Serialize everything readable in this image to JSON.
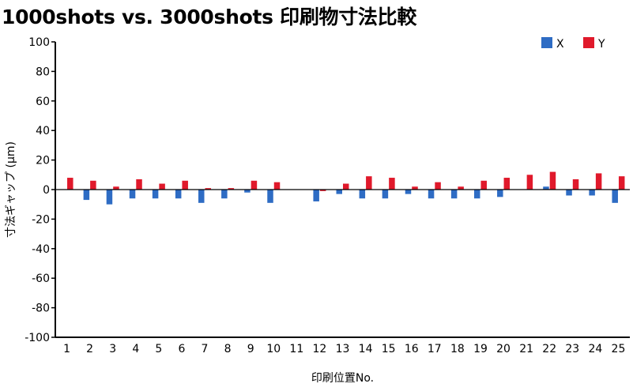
{
  "chart_data": {
    "type": "bar",
    "title": "1000shots vs. 3000shots 印刷物寸法比較",
    "xlabel": "印刷位置No.",
    "ylabel": "寸法ギャップ (μm)",
    "ylim": [
      -100,
      100
    ],
    "yticks": [
      100,
      80,
      60,
      40,
      20,
      0,
      -20,
      -40,
      -60,
      -80,
      -100
    ],
    "legend_position": "top-right",
    "categories": [
      "1",
      "2",
      "3",
      "4",
      "5",
      "6",
      "7",
      "8",
      "9",
      "10",
      "11",
      "12",
      "13",
      "14",
      "15",
      "16",
      "17",
      "18",
      "19",
      "20",
      "21",
      "22",
      "23",
      "24",
      "25"
    ],
    "series": [
      {
        "name": "X",
        "color": "#2e6cc4",
        "values": [
          0,
          -7,
          -10,
          -6,
          -6,
          -6,
          -9,
          -6,
          -2,
          -9,
          0,
          -8,
          -3,
          -6,
          -6,
          -3,
          -6,
          -6,
          -6,
          -5,
          0,
          2,
          -4,
          -4,
          -9
        ]
      },
      {
        "name": "Y",
        "color": "#e0192b",
        "values": [
          8,
          6,
          2,
          7,
          4,
          6,
          1,
          1,
          6,
          5,
          0,
          -1,
          4,
          9,
          8,
          2,
          5,
          2,
          6,
          8,
          10,
          12,
          7,
          11,
          9
        ]
      }
    ]
  }
}
